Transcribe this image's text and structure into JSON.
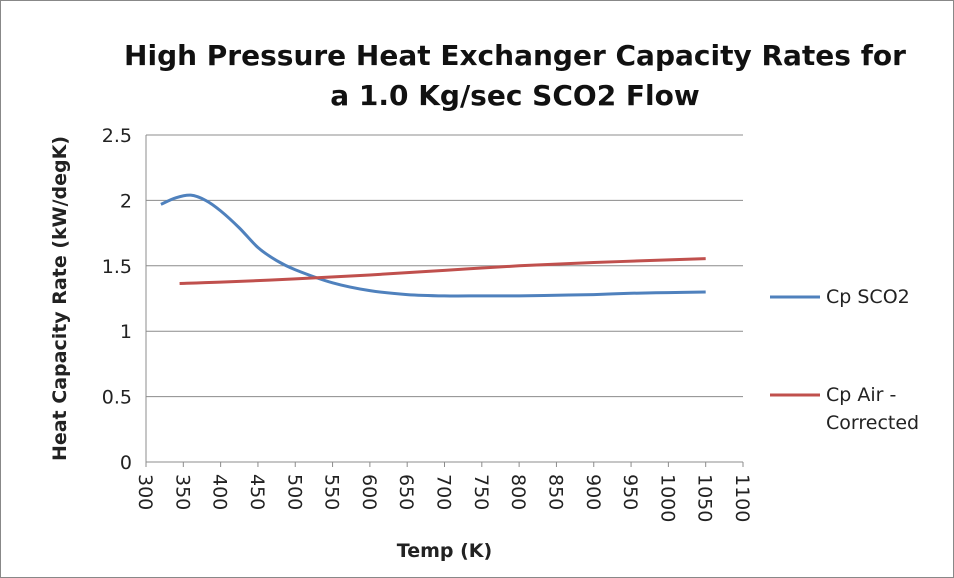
{
  "chart_data": {
    "type": "line",
    "title": "High Pressure Heat Exchanger Capacity Rates for a 1.0 Kg/sec SCO2 Flow",
    "xlabel": "Temp (K)",
    "ylabel": "Heat Capacity Rate (kW/degK)",
    "xlim": [
      300,
      1100
    ],
    "xticks": [
      300,
      350,
      400,
      450,
      500,
      550,
      600,
      650,
      700,
      750,
      800,
      850,
      900,
      950,
      1000,
      1050,
      1100
    ],
    "ylim": [
      0,
      2.5
    ],
    "yticks": [
      0,
      0.5,
      1,
      1.5,
      2,
      2.5
    ],
    "grid": true,
    "legend": "right",
    "series": [
      {
        "name": "Cp SCO2",
        "color": "#4f81bd",
        "x": [
          320,
          340,
          360,
          380,
          400,
          425,
          450,
          475,
          500,
          550,
          600,
          650,
          700,
          750,
          800,
          850,
          900,
          950,
          1000,
          1050
        ],
        "values": [
          1.97,
          2.02,
          2.04,
          2.0,
          1.92,
          1.79,
          1.64,
          1.54,
          1.47,
          1.37,
          1.31,
          1.28,
          1.27,
          1.27,
          1.27,
          1.275,
          1.28,
          1.29,
          1.295,
          1.3
        ]
      },
      {
        "name": "Cp Air - Corrected",
        "color": "#c0504d",
        "x": [
          345,
          400,
          500,
          600,
          700,
          800,
          900,
          1000,
          1050
        ],
        "values": [
          1.365,
          1.375,
          1.4,
          1.43,
          1.465,
          1.5,
          1.525,
          1.545,
          1.555
        ]
      }
    ]
  }
}
